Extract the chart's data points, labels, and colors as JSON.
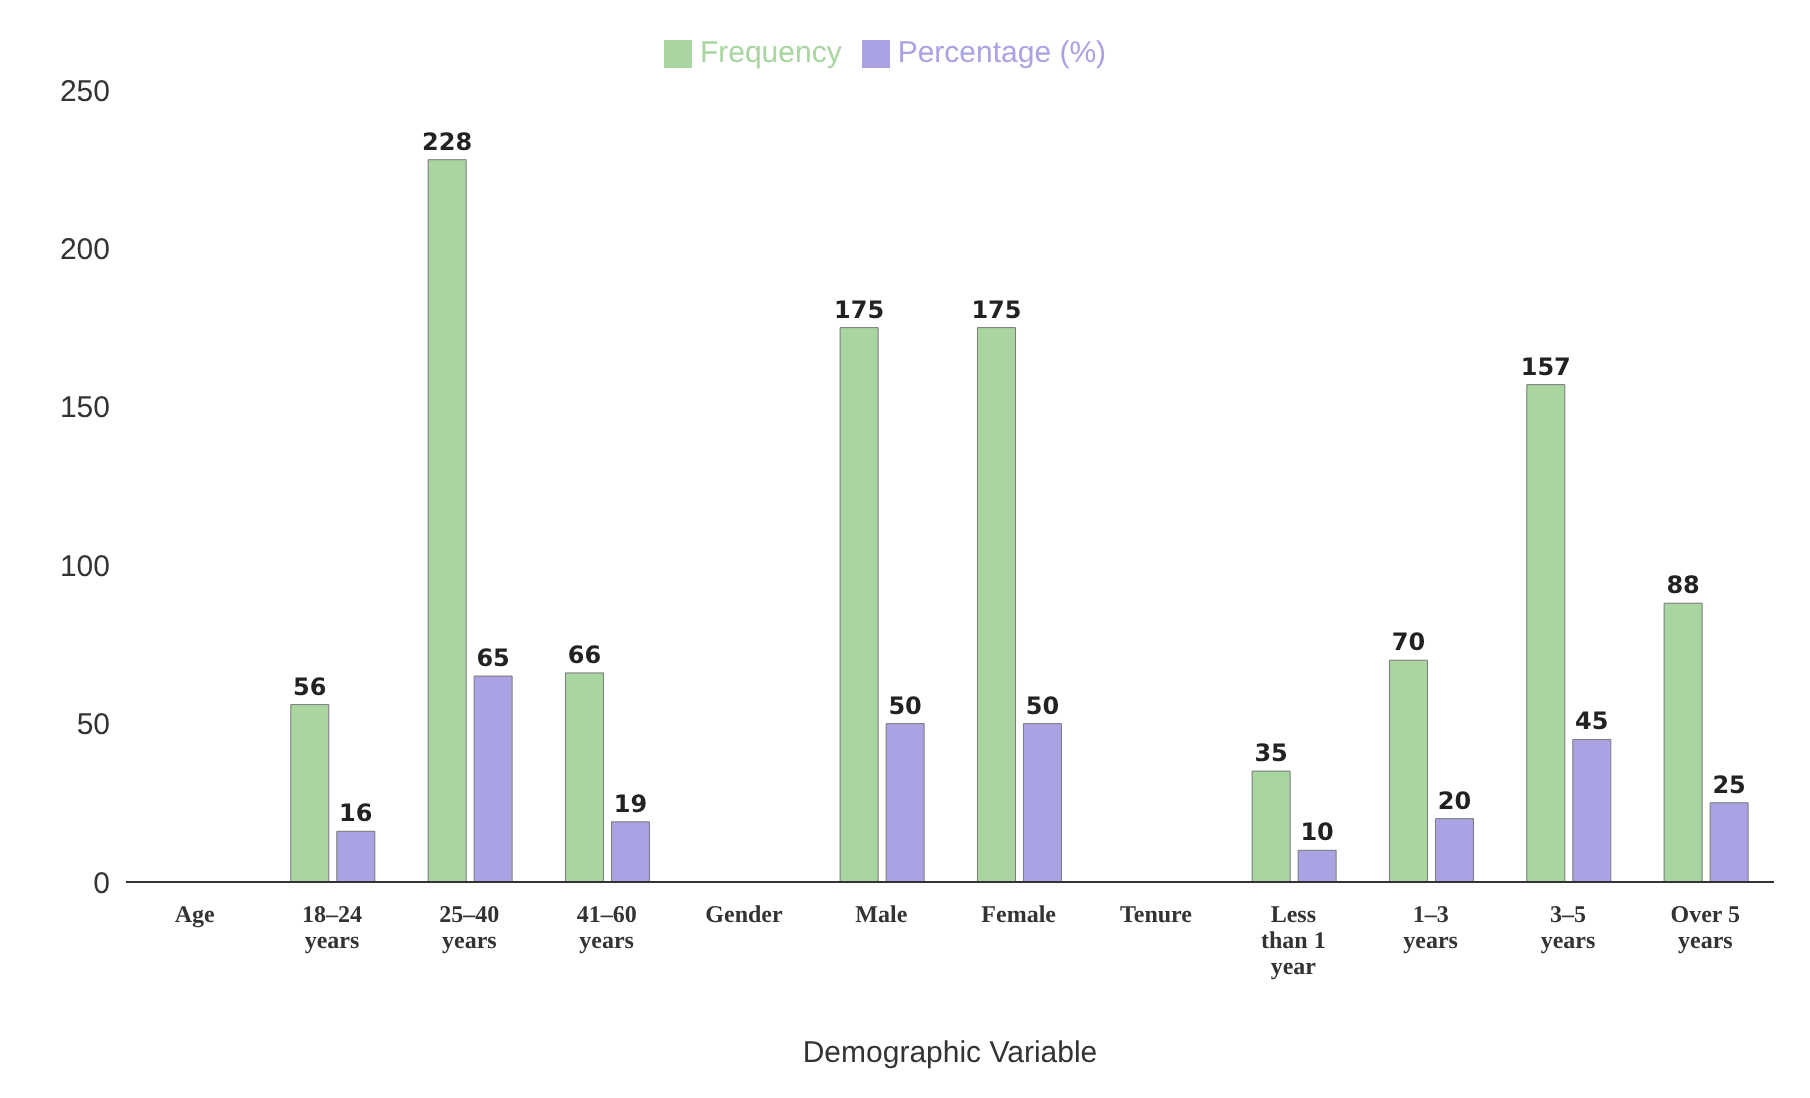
{
  "chart_data": {
    "type": "bar",
    "xlabel": "Demographic Variable",
    "categories": [
      "Age",
      "18–24 years",
      "25–40 years",
      "41–60 years",
      "Gender",
      "Male",
      "Female",
      "Tenure",
      "Less than 1 year",
      "1–3 years",
      "3–5 years",
      "Over 5 years"
    ],
    "series": [
      {
        "name": "Frequency",
        "color": "#a8d5a0",
        "values": [
          null,
          56,
          228,
          66,
          null,
          175,
          175,
          null,
          35,
          70,
          157,
          88
        ]
      },
      {
        "name": "Percentage (%)",
        "color": "#a9a3e3",
        "values": [
          null,
          16,
          65,
          19,
          null,
          50,
          50,
          null,
          10,
          20,
          45,
          25
        ]
      }
    ],
    "ylim": [
      0,
      250
    ],
    "yticks": [
      0,
      50,
      100,
      150,
      200,
      250
    ],
    "data_labels": true,
    "legend": "top",
    "grid": false
  }
}
